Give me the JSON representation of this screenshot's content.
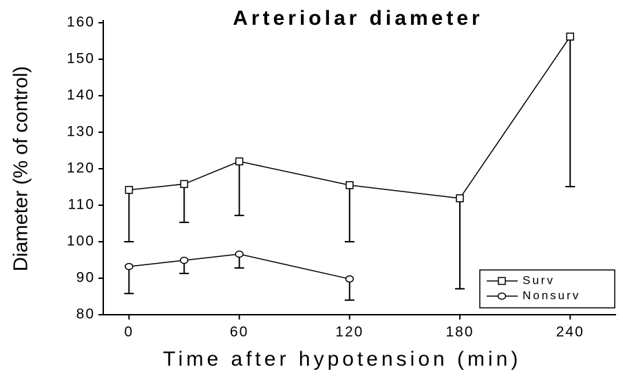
{
  "chart_data": {
    "type": "line",
    "title": "Arteriolar diameter",
    "x_label": "Time after hypotension (min)",
    "y_label": "Diameter (% of control)",
    "x": [
      0,
      30,
      60,
      120,
      180,
      240
    ],
    "series": [
      {
        "name": "Surv",
        "color": "#000000",
        "marker": "square",
        "values": [
          114.2,
          115.8,
          122,
          115.5,
          111.9,
          156.2
        ],
        "errors": [
          14.2,
          10.5,
          14.8,
          15.5,
          24.8,
          41.1
        ]
      },
      {
        "name": "Nonsurv",
        "color": "#000000",
        "marker": "circle",
        "values": [
          93.2,
          94.9,
          96.6,
          89.8,
          null,
          null
        ],
        "errors": [
          7.4,
          3.6,
          3.8,
          5.8,
          null,
          null
        ]
      }
    ],
    "xlim": [
      -14,
      265
    ],
    "xticks": [
      0,
      60,
      120,
      180,
      240
    ],
    "ylim": [
      80,
      160
    ],
    "yticks": [
      80,
      90,
      100,
      110,
      120,
      130,
      140,
      150,
      160
    ],
    "legend": "lower right"
  }
}
